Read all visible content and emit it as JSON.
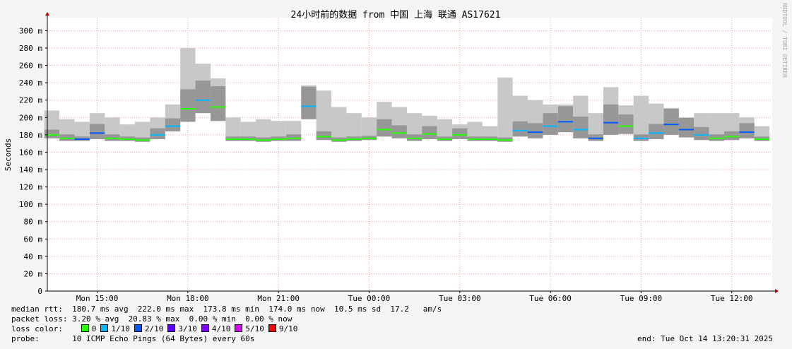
{
  "chart_data": {
    "type": "smokeping",
    "title": "24小时前的数据 from 中国 上海 联通 AS17621",
    "y_label": "Seconds",
    "watermark": "RRDTOOL / TOBI OETIKER",
    "xlim": [
      13.35,
      37.34
    ],
    "xticks": [
      {
        "value": 15,
        "label": "Mon 15:00"
      },
      {
        "value": 18,
        "label": "Mon 18:00"
      },
      {
        "value": 21,
        "label": "Mon 21:00"
      },
      {
        "value": 24,
        "label": "Tue 00:00"
      },
      {
        "value": 27,
        "label": "Tue 03:00"
      },
      {
        "value": 30,
        "label": "Tue 06:00"
      },
      {
        "value": 33,
        "label": "Tue 09:00"
      },
      {
        "value": 36,
        "label": "Tue 12:00"
      }
    ],
    "ylim": [
      0,
      315
    ],
    "yticks": [
      0,
      {
        "value": 20,
        "label": "20 m"
      },
      {
        "value": 40,
        "label": "40 m"
      },
      {
        "value": 60,
        "label": "60 m"
      },
      {
        "value": 80,
        "label": "80 m"
      },
      {
        "value": 100,
        "label": "100 m"
      },
      {
        "value": 120,
        "label": "120 m"
      },
      {
        "value": 140,
        "label": "140 m"
      },
      {
        "value": 160,
        "label": "160 m"
      },
      {
        "value": 180,
        "label": "180 m"
      },
      {
        "value": 200,
        "label": "200 m"
      },
      {
        "value": 220,
        "label": "220 m"
      },
      {
        "value": 240,
        "label": "240 m"
      },
      {
        "value": 260,
        "label": "260 m"
      },
      {
        "value": 280,
        "label": "280 m"
      },
      {
        "value": 300,
        "label": "300 m"
      }
    ],
    "grid": true,
    "smoke_color": "#c8c8c8",
    "x": [
      13.5,
      14,
      14.5,
      15,
      15.5,
      16,
      16.5,
      17,
      17.5,
      18,
      18.5,
      19,
      19.5,
      20,
      20.5,
      21,
      21.5,
      22,
      22.5,
      23,
      23.5,
      24,
      24.5,
      25,
      25.5,
      26,
      26.5,
      27,
      27.5,
      28,
      28.5,
      29,
      29.5,
      30,
      30.5,
      31,
      31.5,
      32,
      32.5,
      33,
      33.5,
      34,
      34.5,
      35,
      35.5,
      36,
      36.5,
      37
    ],
    "median": [
      180,
      176,
      175,
      182,
      176,
      175,
      174,
      180,
      190,
      210,
      220,
      212,
      175,
      175,
      174,
      175,
      176,
      213,
      178,
      174,
      175,
      176,
      186,
      182,
      176,
      181,
      175,
      180,
      175,
      175,
      174,
      185,
      183,
      190,
      195,
      186,
      176,
      194,
      190,
      176,
      182,
      192,
      186,
      180,
      176,
      178,
      183,
      175
    ],
    "smoke_low": [
      176,
      173,
      173,
      175,
      173,
      173,
      172,
      175,
      184,
      195,
      205,
      196,
      173,
      173,
      172,
      173,
      173,
      198,
      174,
      172,
      173,
      174,
      178,
      176,
      173,
      175,
      173,
      175,
      173,
      173,
      172,
      178,
      176,
      180,
      183,
      176,
      173,
      180,
      181,
      173,
      175,
      180,
      177,
      174,
      173,
      174,
      176,
      173
    ],
    "smoke_high": [
      208,
      198,
      195,
      205,
      200,
      192,
      195,
      200,
      215,
      280,
      262,
      245,
      200,
      195,
      198,
      196,
      196,
      237,
      231,
      212,
      205,
      200,
      218,
      212,
      205,
      202,
      198,
      192,
      195,
      190,
      246,
      225,
      220,
      215,
      215,
      225,
      205,
      235,
      214,
      225,
      216,
      211,
      200,
      205,
      205,
      205,
      200,
      190
    ],
    "loss": [
      0,
      0,
      2,
      2,
      0,
      0,
      0,
      1,
      1,
      0,
      1,
      0,
      0,
      0,
      0,
      0,
      0,
      1,
      0,
      0,
      0,
      0,
      0,
      0,
      0,
      0,
      0,
      0,
      0,
      0,
      0,
      1,
      2,
      1,
      2,
      1,
      2,
      2,
      0,
      1,
      1,
      2,
      2,
      1,
      0,
      0,
      2,
      0
    ],
    "loss_legend_title": "loss color:",
    "loss_legend": [
      {
        "loss": 0,
        "label": "0",
        "color": "#26ff00"
      },
      {
        "loss": 1,
        "label": "1/10",
        "color": "#00b8ff"
      },
      {
        "loss": 2,
        "label": "2/10",
        "color": "#0059ff"
      },
      {
        "loss": 3,
        "label": "3/10",
        "color": "#5e00ff"
      },
      {
        "loss": 4,
        "label": "4/10",
        "color": "#7e00ff"
      },
      {
        "loss": 5,
        "label": "5/10",
        "color": "#dd00ff"
      },
      {
        "loss": 9,
        "label": "9/10",
        "color": "#ff0000"
      }
    ],
    "footer": [
      "median rtt:  180.7 ms avg  222.0 ms max  173.8 ms min  174.0 ms now  10.5 ms sd  17.2   am/s",
      "packet loss: 3.20 % avg  20.83 % max  0.00 % min  0.00 % now",
      "probe:       10 ICMP Echo Pings (64 Bytes) every 60s"
    ],
    "end": "end: Tue Oct 14 13:20:31 2025"
  }
}
